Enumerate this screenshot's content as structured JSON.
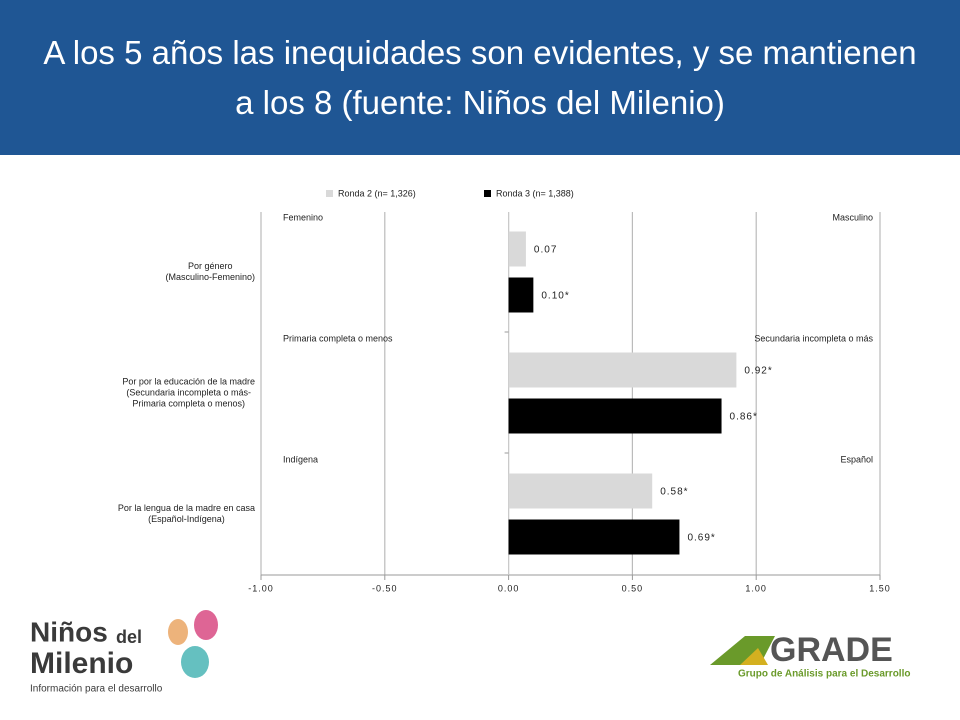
{
  "chart_data": {
    "type": "hbar",
    "title": "A los 5 años las inequidades son evidentes, y se mantienen a los 8 (fuente: Niños del Milenio)",
    "categories": [
      "Por género\n(Masculino-Femenino)",
      "Por por la educación de la madre\n(Secundaria incompleta o más-\nPrimaria completa o menos)",
      "Por la lengua de la madre en casa\n(Español-Indígena)"
    ],
    "series": [
      {
        "name": "Ronda 2 (n= 1,326)",
        "color": "#d9d9d9",
        "values": [
          0.07,
          0.92,
          0.58
        ],
        "value_labels": [
          "0.07",
          "0.92*",
          "0.58*"
        ]
      },
      {
        "name": "Ronda 3 (n= 1,388)",
        "color": "#000000",
        "values": [
          0.1,
          0.86,
          0.69
        ],
        "value_labels": [
          "0.10*",
          "0.86*",
          "0.69*"
        ]
      }
    ],
    "annotations": [
      {
        "left": "Femenino",
        "right": "Masculino"
      },
      {
        "left": "Primaria completa o menos",
        "right": "Secundaria incompleta o más"
      },
      {
        "left": "Indígena",
        "right": "Español"
      }
    ],
    "xlim": [
      -1,
      1.5
    ],
    "xticks": [
      {
        "value": -1,
        "label": "-1.00"
      },
      {
        "value": -0.5,
        "label": "-0.50"
      },
      {
        "value": 0,
        "label": "0.00"
      },
      {
        "value": 0.5,
        "label": "0.50"
      },
      {
        "value": 1,
        "label": "1.00"
      },
      {
        "value": 1.5,
        "label": "1.50"
      }
    ],
    "grid": true
  },
  "logos": {
    "left": {
      "line1": "Niños",
      "line1b": "del",
      "line2": "Milenio",
      "tagline": "Información para el desarrollo"
    },
    "right": {
      "name": "GRADE",
      "tagline": "Grupo de Análisis para el Desarrollo"
    }
  }
}
